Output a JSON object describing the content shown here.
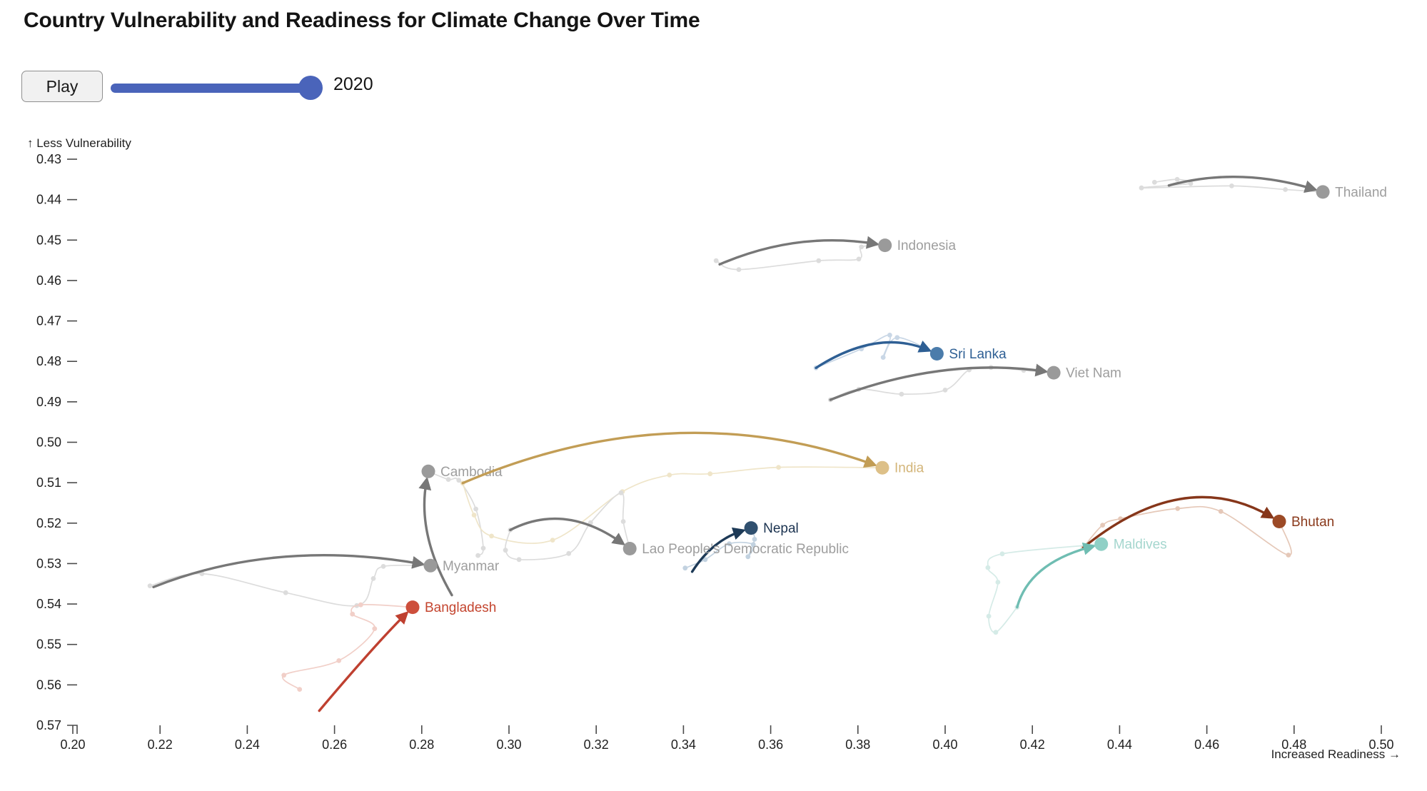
{
  "title": "Country Vulnerability and Readiness for Climate Change Over Time",
  "controls": {
    "play_label": "Play",
    "year": "2020",
    "slider_color": "#4a64ba"
  },
  "chart_data": {
    "type": "scatter",
    "title": "Country Vulnerability and Readiness for Climate Change Over Time",
    "xlabel": "Increased Readiness →",
    "ylabel": "↑ Less Vulnerability",
    "legend": "none",
    "grid": false,
    "x_axis": {
      "min": 0.2,
      "max": 0.5,
      "ticks": [
        "0.20",
        "0.22",
        "0.24",
        "0.26",
        "0.28",
        "0.30",
        "0.32",
        "0.34",
        "0.36",
        "0.38",
        "0.40",
        "0.42",
        "0.44",
        "0.46",
        "0.48",
        "0.50"
      ]
    },
    "y_axis": {
      "min": 0.43,
      "max": 0.57,
      "direction": "vulnerability increases downward",
      "ticks": [
        "0.43",
        "0.44",
        "0.45",
        "0.46",
        "0.47",
        "0.48",
        "0.49",
        "0.50",
        "0.51",
        "0.52",
        "0.53",
        "0.54",
        "0.55",
        "0.56",
        "0.57"
      ]
    },
    "series": [
      {
        "name": "Thailand",
        "color": "#777777",
        "light": "#dcdcdc",
        "dot": "#9a9a9a",
        "label_color": "#9e9e9e",
        "history": [
          [
            0.448,
            0.4357
          ],
          [
            0.4532,
            0.435
          ],
          [
            0.4563,
            0.436
          ],
          [
            0.445,
            0.4371
          ],
          [
            0.4657,
            0.4366
          ],
          [
            0.478,
            0.4375
          ],
          [
            0.4866,
            0.4381
          ]
        ],
        "arrow": {
          "start": [
            0.4513,
            0.4365
          ],
          "ctrl": [
            0.4673,
            0.4318
          ],
          "end": [
            0.4866,
            0.4381
          ]
        }
      },
      {
        "name": "Indonesia",
        "color": "#777777",
        "light": "#dcdcdc",
        "dot": "#9a9a9a",
        "label_color": "#9e9e9e",
        "history": [
          [
            0.3475,
            0.4551
          ],
          [
            0.3527,
            0.4573
          ],
          [
            0.371,
            0.4551
          ],
          [
            0.3802,
            0.4547
          ],
          [
            0.3808,
            0.4517
          ],
          [
            0.3862,
            0.4513
          ]
        ],
        "arrow": {
          "start": [
            0.3483,
            0.456
          ],
          "ctrl": [
            0.366,
            0.4478
          ],
          "end": [
            0.3862,
            0.4513
          ]
        }
      },
      {
        "name": "Sri Lanka",
        "color": "#2e5f94",
        "light": "#c9d7e6",
        "dot": "#4b7cab",
        "label_color": "#2e5f94",
        "history": [
          [
            0.3704,
            0.4816
          ],
          [
            0.3808,
            0.4769
          ],
          [
            0.3873,
            0.4735
          ],
          [
            0.3858,
            0.479
          ],
          [
            0.389,
            0.4741
          ],
          [
            0.3981,
            0.4781
          ]
        ],
        "arrow": {
          "start": [
            0.3704,
            0.4816
          ],
          "ctrl": [
            0.3845,
            0.4718
          ],
          "end": [
            0.3981,
            0.4781
          ]
        }
      },
      {
        "name": "Viet Nam",
        "color": "#777777",
        "light": "#dcdcdc",
        "dot": "#9a9a9a",
        "label_color": "#9e9e9e",
        "history": [
          [
            0.3737,
            0.4895
          ],
          [
            0.3802,
            0.4869
          ],
          [
            0.39,
            0.4881
          ],
          [
            0.4,
            0.4871
          ],
          [
            0.4055,
            0.4821
          ],
          [
            0.4105,
            0.4815
          ],
          [
            0.418,
            0.4822
          ],
          [
            0.4249,
            0.4828
          ]
        ],
        "arrow": {
          "start": [
            0.3737,
            0.4895
          ],
          "ctrl": [
            0.399,
            0.4788
          ],
          "end": [
            0.4249,
            0.4828
          ]
        }
      },
      {
        "name": "Cambodia",
        "color": "#777777",
        "light": "#dcdcdc",
        "dot": "#9a9a9a",
        "label_color": "#9e9e9e",
        "history": [
          [
            0.2929,
            0.528
          ],
          [
            0.2941,
            0.5262
          ],
          [
            0.2924,
            0.5165
          ],
          [
            0.2885,
            0.5094
          ],
          [
            0.2861,
            0.5092
          ],
          [
            0.2815,
            0.5072
          ]
        ],
        "arrow": {
          "start": [
            0.2869,
            0.5378
          ],
          "ctrl": [
            0.2788,
            0.5228
          ],
          "end": [
            0.2815,
            0.5072
          ]
        }
      },
      {
        "name": "India",
        "color": "#c29d55",
        "light": "#efe5c9",
        "dot": "#ddc088",
        "label_color": "#d3b579",
        "history": [
          [
            0.2894,
            0.5101
          ],
          [
            0.292,
            0.518
          ],
          [
            0.296,
            0.5232
          ],
          [
            0.31,
            0.5242
          ],
          [
            0.326,
            0.5122
          ],
          [
            0.3368,
            0.5081
          ],
          [
            0.3461,
            0.5078
          ],
          [
            0.3618,
            0.5062
          ],
          [
            0.3856,
            0.5063
          ]
        ],
        "arrow": {
          "start": [
            0.2894,
            0.5101
          ],
          "ctrl": [
            0.338,
            0.4878
          ],
          "end": [
            0.3856,
            0.5063
          ]
        }
      },
      {
        "name": "Nepal",
        "color": "#1d3a57",
        "light": "#c2d2e0",
        "dot": "#30506f",
        "label_color": "#1b3350",
        "history": [
          [
            0.3404,
            0.5311
          ],
          [
            0.345,
            0.529
          ],
          [
            0.3505,
            0.5251
          ],
          [
            0.356,
            0.5253
          ],
          [
            0.3548,
            0.5283
          ],
          [
            0.3563,
            0.524
          ],
          [
            0.3555,
            0.5212
          ]
        ],
        "arrow": {
          "start": [
            0.342,
            0.532
          ],
          "ctrl": [
            0.3466,
            0.5243
          ],
          "end": [
            0.3555,
            0.5212
          ]
        }
      },
      {
        "name": "Lao People's Democratic Republic",
        "color": "#777777",
        "light": "#dcdcdc",
        "dot": "#9a9a9a",
        "label_color": "#9e9e9e",
        "history": [
          [
            0.3003,
            0.5217
          ],
          [
            0.2992,
            0.5267
          ],
          [
            0.3023,
            0.529
          ],
          [
            0.3137,
            0.5275
          ],
          [
            0.3187,
            0.5199
          ],
          [
            0.3257,
            0.5125
          ],
          [
            0.3262,
            0.5196
          ],
          [
            0.3277,
            0.5263
          ]
        ],
        "arrow": {
          "start": [
            0.3003,
            0.5217
          ],
          "ctrl": [
            0.3128,
            0.5148
          ],
          "end": [
            0.3277,
            0.5263
          ]
        }
      },
      {
        "name": "Myanmar",
        "color": "#777777",
        "light": "#dcdcdc",
        "dot": "#9a9a9a",
        "label_color": "#9e9e9e",
        "history": [
          [
            0.2177,
            0.5355
          ],
          [
            0.2296,
            0.5325
          ],
          [
            0.2488,
            0.5372
          ],
          [
            0.2651,
            0.5404
          ],
          [
            0.2689,
            0.5337
          ],
          [
            0.2712,
            0.5307
          ],
          [
            0.282,
            0.5305
          ]
        ],
        "arrow": {
          "start": [
            0.2185,
            0.5358
          ],
          "ctrl": [
            0.2465,
            0.5238
          ],
          "end": [
            0.282,
            0.5305
          ]
        }
      },
      {
        "name": "Bangladesh",
        "color": "#bf4030",
        "light": "#f1cfc8",
        "dot": "#cd4f3c",
        "label_color": "#c4452f",
        "history": [
          [
            0.252,
            0.5611
          ],
          [
            0.2484,
            0.5576
          ],
          [
            0.261,
            0.554
          ],
          [
            0.2692,
            0.5461
          ],
          [
            0.2641,
            0.5425
          ],
          [
            0.266,
            0.5402
          ],
          [
            0.2779,
            0.5408
          ]
        ],
        "arrow": {
          "start": [
            0.2565,
            0.5664
          ],
          "ctrl": [
            0.2695,
            0.5498
          ],
          "end": [
            0.2779,
            0.5408
          ]
        }
      },
      {
        "name": "Bhutan",
        "color": "#86361a",
        "light": "#e5c8b8",
        "dot": "#9c4a26",
        "label_color": "#8a3a1c",
        "history": [
          [
            0.4317,
            0.526
          ],
          [
            0.4361,
            0.5205
          ],
          [
            0.4402,
            0.5189
          ],
          [
            0.4533,
            0.5164
          ],
          [
            0.4632,
            0.5171
          ],
          [
            0.4787,
            0.5279
          ],
          [
            0.4766,
            0.5196
          ]
        ],
        "arrow": {
          "start": [
            0.4317,
            0.526
          ],
          "ctrl": [
            0.4548,
            0.5058
          ],
          "end": [
            0.4766,
            0.5196
          ]
        }
      },
      {
        "name": "Maldives",
        "color": "#6fbdb2",
        "light": "#d5ebe7",
        "dot": "#90d0c6",
        "label_color": "#a4d6ce",
        "history": [
          [
            0.4165,
            0.5408
          ],
          [
            0.4116,
            0.547
          ],
          [
            0.41,
            0.543
          ],
          [
            0.4121,
            0.5346
          ],
          [
            0.4098,
            0.531
          ],
          [
            0.4131,
            0.5276
          ],
          [
            0.4358,
            0.5252
          ]
        ],
        "arrow": {
          "start": [
            0.4165,
            0.5408
          ],
          "ctrl": [
            0.4193,
            0.5298
          ],
          "end": [
            0.4358,
            0.5252
          ]
        }
      }
    ]
  }
}
